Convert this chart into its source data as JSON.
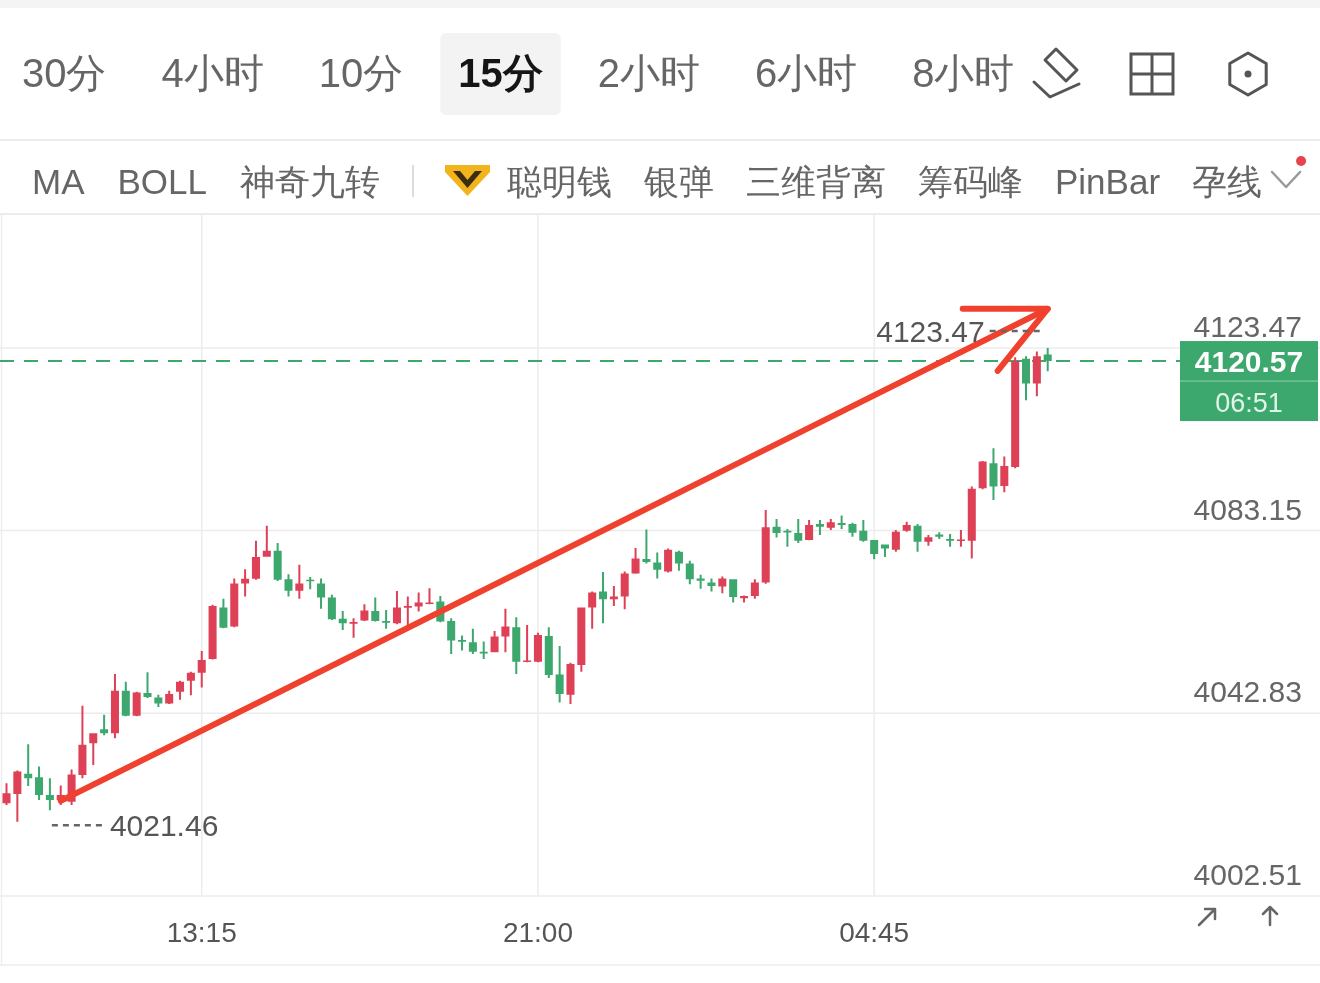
{
  "chart_data": [
    {
      "type": "other",
      "title": "15分",
      "categories": [
        "30分",
        "4小时",
        "10分",
        null,
        "2小时",
        "6小时",
        "8小时"
      ]
    },
    {
      "type": "other",
      "categories": [
        "MA",
        "BOLL",
        "神奇九转"
      ]
    },
    {
      "type": "other",
      "categories": [
        "聪明钱",
        "银弹",
        "三维背离",
        "筹码峰",
        "PinBar",
        "孕线"
      ]
    },
    {
      "type": "candlestick",
      "categories": [
        null,
        null,
        null,
        null,
        null,
        null,
        null,
        null,
        null,
        null,
        null,
        null,
        null,
        null,
        null,
        null,
        null,
        null,
        "13:15",
        null,
        null,
        null,
        null,
        null,
        null,
        null,
        null,
        null,
        null,
        null,
        null,
        null,
        null,
        null,
        null,
        null,
        null,
        null,
        null,
        null,
        null,
        null,
        null,
        null,
        null,
        null,
        null,
        null,
        null,
        "21:00",
        null,
        null,
        null,
        null,
        null,
        null,
        null,
        null,
        null,
        null,
        null,
        null,
        null,
        null,
        null,
        null,
        null,
        null,
        null,
        null,
        null,
        null,
        null,
        null,
        null,
        null,
        null,
        null,
        null,
        null,
        "04:45",
        null,
        null,
        null,
        null,
        null,
        null,
        null,
        null,
        null,
        null,
        null,
        null,
        null,
        null,
        null,
        null
      ],
      "ohlc": [
        [
          4023.0,
          4027.4,
          4022.6,
          4025.2
        ],
        [
          4025.0,
          4030.2,
          4018.9,
          4030.0
        ],
        [
          4029.5,
          4036.0,
          4026.8,
          4028.5
        ],
        [
          4028.7,
          4031.1,
          4023.7,
          4024.8
        ],
        [
          4024.8,
          4028.5,
          4021.46,
          4023.7
        ],
        [
          4023.7,
          4026.9,
          4022.6,
          4024.8
        ],
        [
          4023.3,
          4030.4,
          4022.6,
          4029.3
        ],
        [
          4029.2,
          4044.5,
          4028.5,
          4035.9
        ],
        [
          4036.2,
          4038.4,
          4031.4,
          4038.4
        ],
        [
          4039.3,
          4042.5,
          4038.0,
          4038.4
        ],
        [
          4038.4,
          4051.5,
          4037.3,
          4047.8
        ],
        [
          4047.8,
          4049.8,
          4042.2,
          4042.3
        ],
        [
          4042.3,
          4047.6,
          4042.2,
          4047.4
        ],
        [
          4047.3,
          4051.9,
          4046.2,
          4046.4
        ],
        [
          4046.3,
          4046.9,
          4044.2,
          4045.0
        ],
        [
          4045.0,
          4047.8,
          4044.9,
          4047.1
        ],
        [
          4047.6,
          4050.0,
          4045.8,
          4049.8
        ],
        [
          4050.0,
          4052.0,
          4046.8,
          4051.8
        ],
        [
          4051.8,
          4056.6,
          4048.5,
          4054.6
        ],
        [
          4054.8,
          4066.8,
          4054.7,
          4066.5
        ],
        [
          4066.2,
          4068.1,
          4061.6,
          4061.7
        ],
        [
          4062.0,
          4072.6,
          4061.8,
          4071.5
        ],
        [
          4071.5,
          4074.6,
          4068.6,
          4072.5
        ],
        [
          4072.5,
          4080.9,
          4072.3,
          4077.3
        ],
        [
          4077.4,
          4084.2,
          4077.4,
          4078.7
        ],
        [
          4078.7,
          4080.4,
          4072.0,
          4072.3
        ],
        [
          4072.4,
          4073.5,
          4068.6,
          4069.9
        ],
        [
          4069.9,
          4075.6,
          4068.1,
          4071.5
        ],
        [
          4072.3,
          4072.9,
          4070.2,
          4072.0
        ],
        [
          4071.5,
          4072.6,
          4065.9,
          4068.4
        ],
        [
          4068.4,
          4069.0,
          4063.4,
          4063.6
        ],
        [
          4063.7,
          4065.4,
          4061.2,
          4062.7
        ],
        [
          4062.6,
          4063.8,
          4059.5,
          4063.0
        ],
        [
          4063.3,
          4066.9,
          4063.2,
          4065.5
        ],
        [
          4065.4,
          4068.4,
          4063.1,
          4063.2
        ],
        [
          4063.2,
          4065.6,
          4061.5,
          4062.8
        ],
        [
          4062.7,
          4069.8,
          4062.5,
          4066.2
        ],
        [
          4066.2,
          4068.6,
          4061.6,
          4066.5
        ],
        [
          4066.4,
          4069.5,
          4065.3,
          4067.3
        ],
        [
          4067.0,
          4070.4,
          4066.9,
          4067.3
        ],
        [
          4067.5,
          4068.7,
          4062.9,
          4063.1
        ],
        [
          4063.2,
          4063.8,
          4055.9,
          4058.9
        ],
        [
          4059.0,
          4060.0,
          4056.7,
          4058.7
        ],
        [
          4058.5,
          4061.5,
          4055.9,
          4056.4
        ],
        [
          4056.4,
          4058.7,
          4054.8,
          4056.2
        ],
        [
          4056.3,
          4061.0,
          4056.3,
          4059.8
        ],
        [
          4059.8,
          4065.9,
          4056.3,
          4062.0
        ],
        [
          4061.8,
          4064.0,
          4051.5,
          4054.2
        ],
        [
          4054.2,
          4062.3,
          4054.1,
          4054.5
        ],
        [
          4054.2,
          4060.6,
          4054.1,
          4060.1
        ],
        [
          4059.9,
          4061.8,
          4050.6,
          4051.3
        ],
        [
          4051.4,
          4057.7,
          4045.2,
          4047.1
        ],
        [
          4046.9,
          4054.0,
          4044.9,
          4053.7
        ],
        [
          4053.5,
          4066.2,
          4052.0,
          4066.2
        ],
        [
          4066.2,
          4069.7,
          4061.5,
          4069.5
        ],
        [
          4069.7,
          4074.0,
          4062.7,
          4068.0
        ],
        [
          4068.0,
          4070.9,
          4066.5,
          4068.6
        ],
        [
          4068.6,
          4074.1,
          4065.8,
          4073.7
        ],
        [
          4073.7,
          4079.3,
          4073.6,
          4077.0
        ],
        [
          4076.9,
          4083.4,
          4075.9,
          4076.2
        ],
        [
          4076.1,
          4078.3,
          4072.6,
          4074.5
        ],
        [
          4074.1,
          4079.2,
          4073.9,
          4078.9
        ],
        [
          4078.5,
          4078.7,
          4074.3,
          4075.9
        ],
        [
          4075.9,
          4076.5,
          4071.3,
          4072.4
        ],
        [
          4072.6,
          4073.4,
          4070.3,
          4072.1
        ],
        [
          4071.7,
          4072.6,
          4069.7,
          4070.9
        ],
        [
          4070.8,
          4073.0,
          4069.3,
          4072.6
        ],
        [
          4072.4,
          4072.4,
          4067.3,
          4068.5
        ],
        [
          4068.2,
          4068.8,
          4067.3,
          4068.7
        ],
        [
          4068.7,
          4072.4,
          4068.1,
          4071.7
        ],
        [
          4071.7,
          4087.7,
          4071.4,
          4083.9
        ],
        [
          4084.0,
          4085.7,
          4081.6,
          4082.6
        ],
        [
          4083.1,
          4083.5,
          4079.6,
          4082.9
        ],
        [
          4082.6,
          4085.7,
          4080.4,
          4080.9
        ],
        [
          4081.1,
          4085.5,
          4081.0,
          4084.4
        ],
        [
          4084.6,
          4085.5,
          4082.2,
          4084.0
        ],
        [
          4083.8,
          4085.7,
          4083.3,
          4085.0
        ],
        [
          4084.8,
          4086.5,
          4083.5,
          4084.4
        ],
        [
          4084.6,
          4084.9,
          4081.8,
          4082.7
        ],
        [
          4083.1,
          4085.5,
          4080.7,
          4080.9
        ],
        [
          4081.1,
          4081.1,
          4076.8,
          4078.0
        ],
        [
          4080.1,
          4080.1,
          4077.3,
          4079.2
        ],
        [
          4078.9,
          4083.3,
          4078.5,
          4082.9
        ],
        [
          4083.1,
          4085.1,
          4082.9,
          4084.4
        ],
        [
          4084.2,
          4084.6,
          4078.5,
          4080.7
        ],
        [
          4080.7,
          4082.2,
          4079.8,
          4081.7
        ],
        [
          4082.3,
          4082.8,
          4081.3,
          4081.8
        ],
        [
          4081.3,
          4082.4,
          4079.6,
          4080.9
        ],
        [
          4080.9,
          4083.3,
          4079.6,
          4081.2
        ],
        [
          4080.9,
          4092.9,
          4077.0,
          4092.4
        ],
        [
          4092.5,
          4098.5,
          4092.3,
          4098.4
        ],
        [
          4098.0,
          4101.3,
          4089.9,
          4092.9
        ],
        [
          4093.0,
          4099.5,
          4091.6,
          4097.4
        ],
        [
          4097.2,
          4121.4,
          4096.9,
          4120.6
        ],
        [
          4121.1,
          4121.6,
          4111.9,
          4115.6
        ],
        [
          4115.6,
          4122.7,
          4112.8,
          4121.6
        ],
        [
          4122.0,
          4123.47,
          4118.3,
          4120.57
        ]
      ],
      "colors": [
        "#de4055",
        "#de4055",
        "#3da86e",
        "#3da86e",
        "#3da86e",
        "#de4055",
        "#de4055",
        "#de4055",
        "#de4055",
        "#3da86e",
        "#de4055",
        "#3da86e",
        "#de4055",
        "#3da86e",
        "#3da86e",
        "#de4055",
        "#de4055",
        "#de4055",
        "#de4055",
        "#de4055",
        "#3da86e",
        "#de4055",
        "#de4055",
        "#de4055",
        "#de4055",
        "#3da86e",
        "#3da86e",
        "#de4055",
        "#3da86e",
        "#3da86e",
        "#3da86e",
        "#3da86e",
        "#de4055",
        "#de4055",
        "#3da86e",
        "#3da86e",
        "#de4055",
        "#de4055",
        "#de4055",
        "#de4055",
        "#3da86e",
        "#3da86e",
        "#3da86e",
        "#3da86e",
        "#3da86e",
        "#de4055",
        "#de4055",
        "#3da86e",
        "#de4055",
        "#de4055",
        "#3da86e",
        "#3da86e",
        "#de4055",
        "#de4055",
        "#de4055",
        "#3da86e",
        "#de4055",
        "#de4055",
        "#de4055",
        "#3da86e",
        "#3da86e",
        "#de4055",
        "#3da86e",
        "#3da86e",
        "#3da86e",
        "#3da86e",
        "#de4055",
        "#3da86e",
        "#de4055",
        "#de4055",
        "#de4055",
        "#3da86e",
        "#3da86e",
        "#3da86e",
        "#de4055",
        "#3da86e",
        "#de4055",
        "#3da86e",
        "#3da86e",
        "#3da86e",
        "#3da86e",
        "#3da86e",
        "#de4055",
        "#de4055",
        "#3da86e",
        "#de4055",
        "#3da86e",
        "#3da86e",
        "#de4055",
        "#de4055",
        "#de4055",
        "#3da86e",
        "#de4055",
        "#de4055",
        "#3da86e",
        "#de4055",
        "#3da86e"
      ],
      "value_labels": [
        null,
        null,
        null,
        null,
        "4021.46",
        null,
        null,
        null,
        null,
        null,
        null,
        null,
        null,
        null,
        null,
        null,
        null,
        null,
        null,
        null,
        null,
        null,
        null,
        null,
        null,
        null,
        null,
        null,
        null,
        null,
        null,
        null,
        null,
        null,
        null,
        null,
        null,
        null,
        null,
        null,
        null,
        null,
        null,
        null,
        null,
        null,
        null,
        null,
        null,
        null,
        null,
        null,
        null,
        null,
        null,
        null,
        null,
        null,
        null,
        null,
        null,
        null,
        null,
        null,
        null,
        null,
        null,
        null,
        null,
        null,
        null,
        null,
        null,
        null,
        null,
        null,
        null,
        null,
        null,
        null,
        null,
        null,
        null,
        null,
        null,
        null,
        null,
        null,
        null,
        null,
        null,
        null,
        null,
        null,
        null,
        null,
        "4123.47"
      ],
      "series": [
        {
          "type": "line",
          "color": "#f0412f",
          "values": [
            null,
            null,
            null,
            null,
            null,
            4023.5,
            null,
            null,
            null,
            null,
            null,
            null,
            null,
            null,
            null,
            null,
            null,
            null,
            null,
            null,
            null,
            null,
            null,
            null,
            null,
            null,
            null,
            null,
            null,
            null,
            null,
            null,
            null,
            null,
            null,
            null,
            null,
            null,
            null,
            null,
            null,
            null,
            null,
            null,
            null,
            null,
            null,
            null,
            null,
            null,
            null,
            null,
            null,
            null,
            null,
            null,
            null,
            null,
            null,
            null,
            null,
            null,
            null,
            null,
            null,
            null,
            null,
            null,
            null,
            null,
            null,
            null,
            null,
            null,
            null,
            null,
            null,
            null,
            null,
            null,
            null,
            null,
            null,
            null,
            null,
            null,
            null,
            null,
            null,
            null,
            null,
            null,
            null,
            null,
            null,
            null,
            4132.1
          ]
        }
      ],
      "ylim": [
        4002.51,
        4152.8
      ],
      "yticks": [
        4002.51,
        4042.83,
        4083.15,
        4123.47
      ],
      "grid": true,
      "ref_lines": [
        {
          "axis": "y",
          "value": 4120.57,
          "label": "4120.57",
          "color": "#3da86e",
          "line_style": "dashed"
        }
      ],
      "annotations": [
        "06:51"
      ]
    }
  ]
}
